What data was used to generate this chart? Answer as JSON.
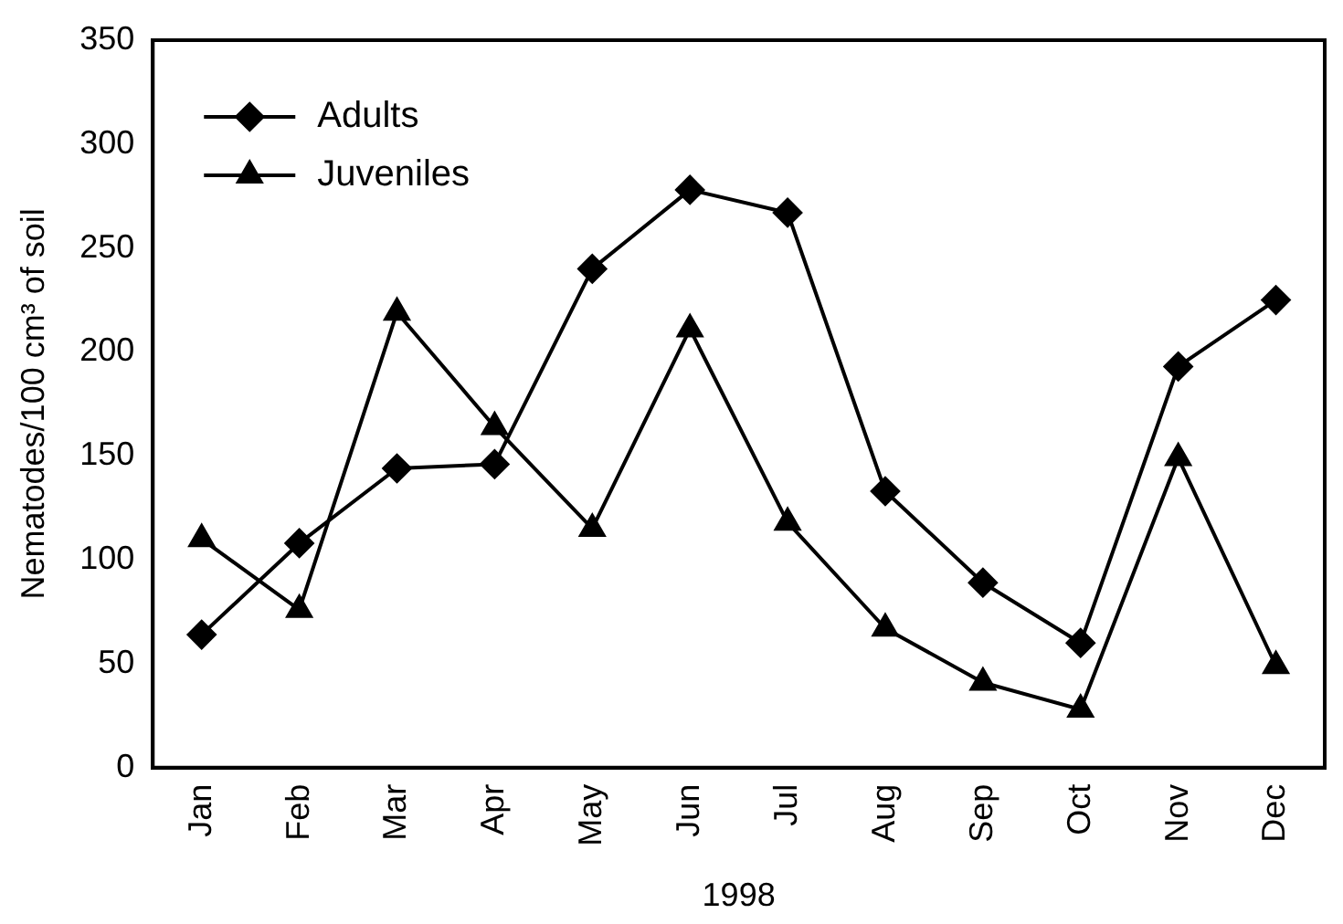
{
  "chart_data": {
    "type": "line",
    "xlabel": "1998",
    "ylabel": "Nematodes/100 cm³ of soil",
    "categories": [
      "Jan",
      "Feb",
      "Mar",
      "Apr",
      "May",
      "Jun",
      "Jul",
      "Aug",
      "Sep",
      "Oct",
      "Nov",
      "Dec"
    ],
    "series": [
      {
        "name": "Adults",
        "color": "#000000",
        "marker": "diamond",
        "values": [
          64,
          108,
          144,
          146,
          240,
          278,
          267,
          133,
          89,
          60,
          193,
          225
        ]
      },
      {
        "name": "Juveniles",
        "color": "#000000",
        "marker": "triangle",
        "values": [
          110,
          76,
          219,
          164,
          115,
          211,
          118,
          67,
          41,
          28,
          149,
          49
        ]
      }
    ],
    "ylim": [
      0,
      350
    ],
    "yticks": [
      0,
      50,
      100,
      150,
      200,
      250,
      300,
      350
    ],
    "grid": false,
    "legend": "top left",
    "line_style": "solid"
  }
}
